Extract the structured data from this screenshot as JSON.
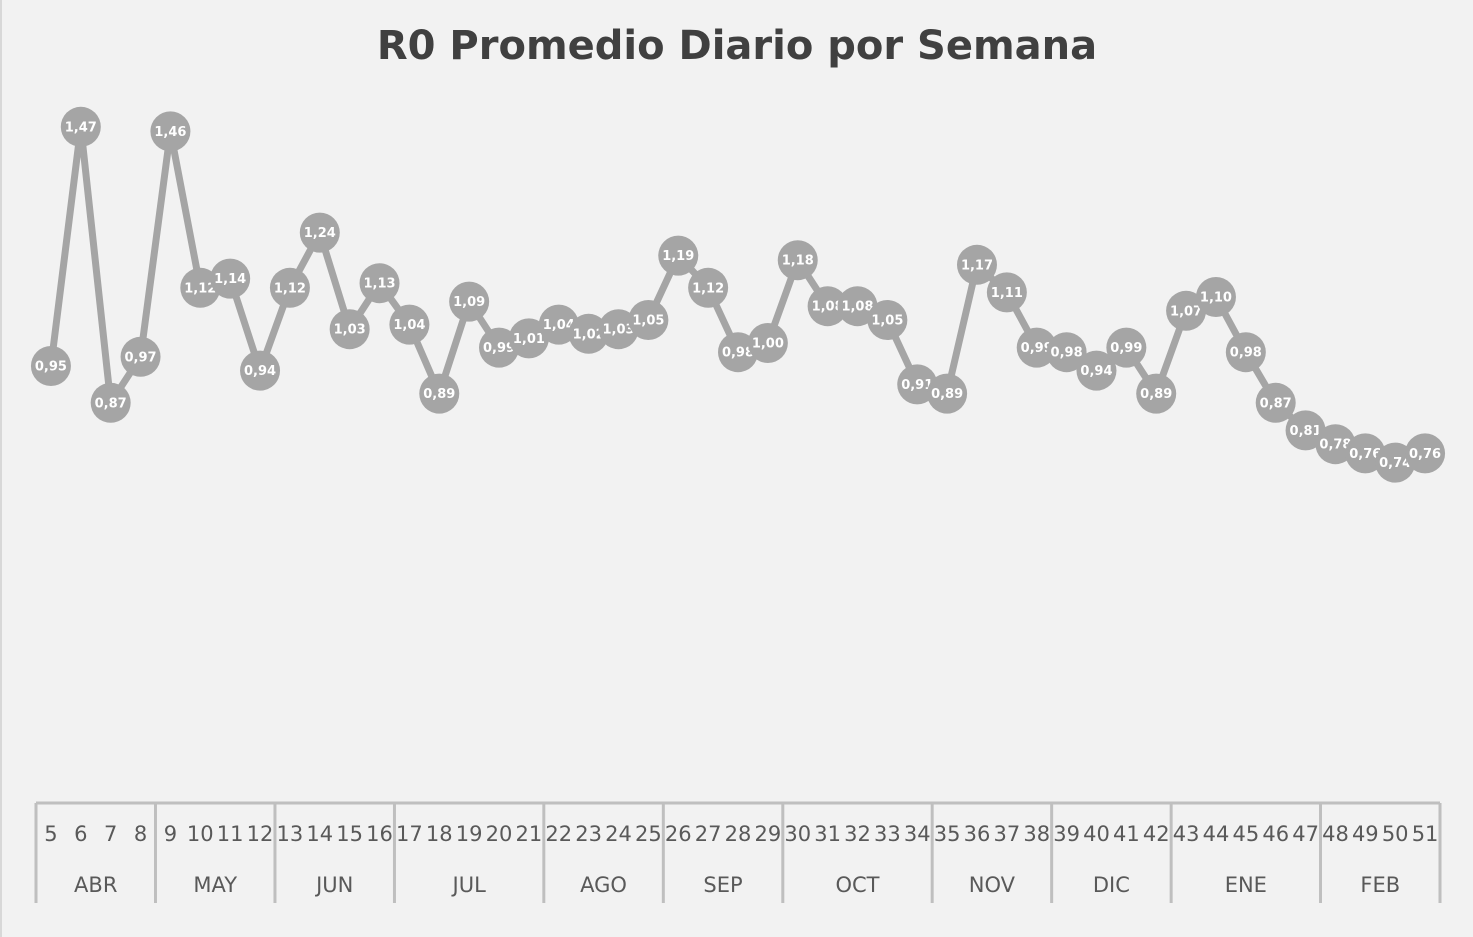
{
  "chart_data": {
    "type": "line",
    "title": "R0 Promedio Diario por Semana",
    "category_groups": [
      {
        "label": "ABR",
        "categories": [
          "5",
          "6",
          "7",
          "8"
        ]
      },
      {
        "label": "MAY",
        "categories": [
          "9",
          "10",
          "11",
          "12"
        ]
      },
      {
        "label": "JUN",
        "categories": [
          "13",
          "14",
          "15",
          "16"
        ]
      },
      {
        "label": "JUL",
        "categories": [
          "17",
          "18",
          "19",
          "20",
          "21"
        ]
      },
      {
        "label": "AGO",
        "categories": [
          "22",
          "23",
          "24",
          "25"
        ]
      },
      {
        "label": "SEP",
        "categories": [
          "26",
          "27",
          "28",
          "29"
        ]
      },
      {
        "label": "OCT",
        "categories": [
          "30",
          "31",
          "32",
          "33",
          "34"
        ]
      },
      {
        "label": "NOV",
        "categories": [
          "35",
          "36",
          "37",
          "38"
        ]
      },
      {
        "label": "DIC",
        "categories": [
          "39",
          "40",
          "41",
          "42"
        ]
      },
      {
        "label": "ENE",
        "categories": [
          "43",
          "44",
          "45",
          "46",
          "47"
        ]
      },
      {
        "label": "FEB",
        "categories": [
          "48",
          "49",
          "50",
          "51"
        ]
      }
    ],
    "series": [
      {
        "color": "#a5a5a5",
        "values": [
          0.95,
          1.47,
          0.87,
          0.97,
          1.46,
          1.12,
          1.14,
          0.94,
          1.12,
          1.24,
          1.03,
          1.13,
          1.04,
          0.89,
          1.09,
          0.99,
          1.01,
          1.04,
          1.02,
          1.03,
          1.05,
          1.19,
          1.12,
          0.98,
          1.0,
          1.18,
          1.08,
          1.08,
          1.05,
          0.91,
          0.89,
          1.17,
          1.11,
          0.99,
          0.98,
          0.94,
          0.99,
          0.89,
          1.07,
          1.1,
          0.98,
          0.87,
          0.81,
          0.78,
          0.76,
          0.74,
          0.76
        ],
        "value_labels": [
          "0,95",
          "1,47",
          "0,87",
          "0,97",
          "1,46",
          "1,12",
          "1,14",
          "0,94",
          "1,12",
          "1,24",
          "1,03",
          "1,13",
          "1,04",
          "0,89",
          "1,09",
          "0,99",
          "1,01",
          "1,04",
          "1,02",
          "1,03",
          "1,05",
          "1,19",
          "1,12",
          "0,98",
          "1,00",
          "1,18",
          "1,08",
          "1,08",
          "1,05",
          "0,91",
          "0,89",
          "1,17",
          "1,11",
          "0,99",
          "0,98",
          "0,94",
          "0,99",
          "0,89",
          "1,07",
          "1,10",
          "0,98",
          "0,87",
          "0,81",
          "0,78",
          "0,76",
          "0,74",
          "0,76"
        ]
      }
    ],
    "ylim": [
      0,
      1.6
    ]
  }
}
